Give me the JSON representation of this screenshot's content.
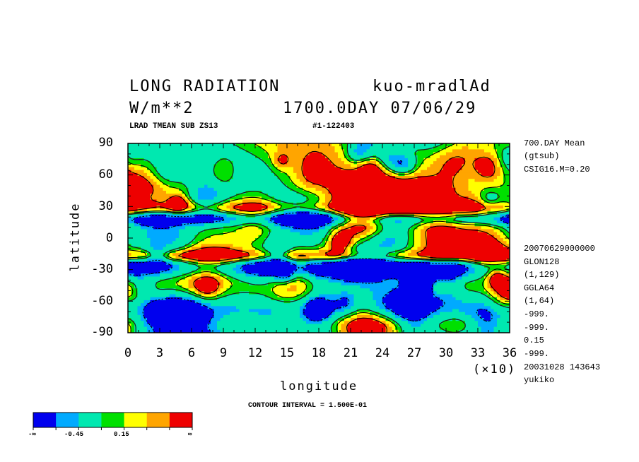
{
  "header": {
    "title_left": "LONG RADIATION",
    "title_right": "kuo-mradlAd",
    "units": "W/m**2",
    "time": "1700.0DAY 07/06/29",
    "sub_left": "LRAD TMEAN SUB ZS13",
    "sub_right": "#1-122403"
  },
  "side_info": {
    "top": [
      "700.DAY Mean",
      "(gtsub)",
      "CSIG16.M=0.20"
    ],
    "bottom": [
      "20070629000000",
      "GLON128",
      "(1,129)",
      "GGLA64",
      "(1,64)",
      "-999.",
      "-999.",
      "0.15",
      "-999.",
      "20031028 143643",
      "yukiko"
    ]
  },
  "footer": {
    "contour_interval": "CONTOUR INTERVAL = 1.500E-01",
    "scale_multiplier": "(×10)"
  },
  "legend": {
    "colors": [
      "#0000ee",
      "#00aaff",
      "#00e8b0",
      "#00e000",
      "#ffff00",
      "#ffa500",
      "#ee0000"
    ],
    "labels": [
      "-∞",
      "-0.45",
      "0.15",
      "∞"
    ]
  },
  "chart_data": {
    "type": "heatmap",
    "title": "LONG RADIATION",
    "xlabel": "longitude",
    "ylabel": "latitude",
    "x_ticks": [
      "0",
      "3",
      "6",
      "9",
      "12",
      "15",
      "18",
      "21",
      "24",
      "27",
      "30",
      "33",
      "36"
    ],
    "y_ticks": [
      "90",
      "60",
      "30",
      "0",
      "-30",
      "-60",
      "-90"
    ],
    "xlim": [
      0,
      360
    ],
    "ylim": [
      -90,
      90
    ],
    "contour_interval": 0.15,
    "levels": [
      -0.45,
      -0.3,
      -0.15,
      0.0,
      0.15,
      0.3,
      0.45
    ],
    "bands": [
      {
        "lat": [
          -90,
          -75
        ],
        "value": 0.2
      },
      {
        "lat": [
          -75,
          -55
        ],
        "value": -0.2
      },
      {
        "lat": [
          -55,
          -38
        ],
        "value": 0.0
      },
      {
        "lat": [
          -38,
          -18
        ],
        "value": -0.9
      },
      {
        "lat": [
          -22,
          -12
        ],
        "value": 0.6
      },
      {
        "lat": [
          -12,
          12
        ],
        "value": -0.25
      },
      {
        "lat": [
          12,
          25
        ],
        "value": -0.7
      },
      {
        "lat": [
          22,
          35
        ],
        "value": 0.5
      },
      {
        "lat": [
          35,
          60
        ],
        "value": 0.1
      },
      {
        "lat": [
          60,
          90
        ],
        "value": 0.0
      }
    ]
  }
}
